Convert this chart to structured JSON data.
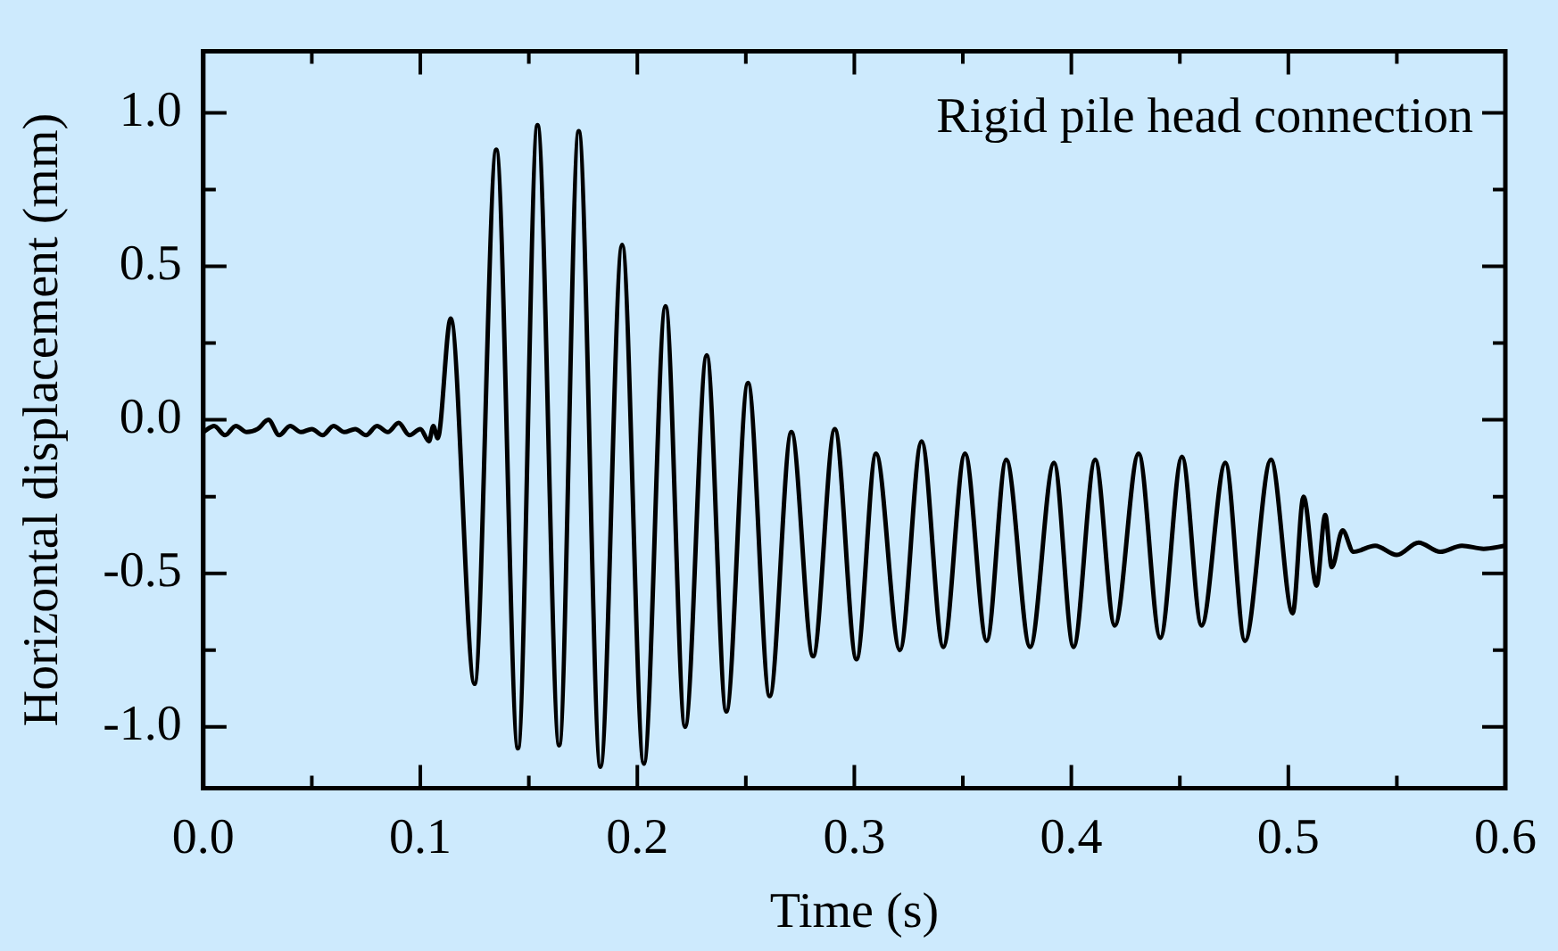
{
  "chart_data": {
    "type": "line",
    "xlabel": "Time (s)",
    "ylabel": "Horizontal displacement (mm)",
    "annotations": [
      "Rigid pile head connection"
    ],
    "color": "#000000",
    "marker": "none",
    "line_style": "solid",
    "grid": false,
    "legend": false,
    "xlim": [
      0,
      0.6
    ],
    "ylim": [
      -1.2,
      1.2
    ],
    "xticks": [
      {
        "value": 0,
        "label": "0.0"
      },
      {
        "value": 0.05,
        "label": null
      },
      {
        "value": 0.1,
        "label": "0.1"
      },
      {
        "value": 0.15,
        "label": null
      },
      {
        "value": 0.2,
        "label": "0.2"
      },
      {
        "value": 0.25,
        "label": null
      },
      {
        "value": 0.3,
        "label": "0.3"
      },
      {
        "value": 0.35,
        "label": null
      },
      {
        "value": 0.4,
        "label": "0.4"
      },
      {
        "value": 0.45,
        "label": null
      },
      {
        "value": 0.5,
        "label": "0.5"
      },
      {
        "value": 0.55,
        "label": null
      },
      {
        "value": 0.6,
        "label": "0.6"
      }
    ],
    "yticks": [
      {
        "value": -1,
        "label": "-1.0"
      },
      {
        "value": -0.75,
        "label": null
      },
      {
        "value": -0.5,
        "label": "-0.5"
      },
      {
        "value": -0.25,
        "label": null
      },
      {
        "value": 0,
        "label": "0.0"
      },
      {
        "value": 0.25,
        "label": null
      },
      {
        "value": 0.5,
        "label": "0.5"
      },
      {
        "value": 0.75,
        "label": null
      },
      {
        "value": 1,
        "label": "1.0"
      }
    ],
    "x": [
      0,
      0.005,
      0.01,
      0.015,
      0.02,
      0.025,
      0.03,
      0.035,
      0.04,
      0.045,
      0.05,
      0.055,
      0.06,
      0.065,
      0.07,
      0.075,
      0.08,
      0.085,
      0.09,
      0.095,
      0.1,
      0.104,
      0.106,
      0.108,
      0.114,
      0.125,
      0.135,
      0.145,
      0.154,
      0.164,
      0.173,
      0.183,
      0.193,
      0.203,
      0.213,
      0.222,
      0.232,
      0.241,
      0.251,
      0.261,
      0.271,
      0.281,
      0.291,
      0.301,
      0.31,
      0.321,
      0.331,
      0.341,
      0.351,
      0.361,
      0.37,
      0.381,
      0.392,
      0.401,
      0.411,
      0.42,
      0.431,
      0.441,
      0.451,
      0.46,
      0.471,
      0.48,
      0.492,
      0.502,
      0.507,
      0.513,
      0.517,
      0.52,
      0.525,
      0.53,
      0.54,
      0.55,
      0.56,
      0.57,
      0.58,
      0.59,
      0.6
    ],
    "values": [
      -0.04,
      -0.02,
      -0.05,
      -0.02,
      -0.04,
      -0.03,
      0.0,
      -0.05,
      -0.02,
      -0.04,
      -0.03,
      -0.05,
      -0.02,
      -0.04,
      -0.03,
      -0.05,
      -0.02,
      -0.04,
      -0.01,
      -0.05,
      -0.03,
      -0.07,
      -0.02,
      -0.06,
      0.33,
      -0.86,
      0.88,
      -1.07,
      0.96,
      -1.06,
      0.94,
      -1.13,
      0.57,
      -1.12,
      0.37,
      -1.0,
      0.21,
      -0.95,
      0.12,
      -0.9,
      -0.04,
      -0.77,
      -0.03,
      -0.78,
      -0.11,
      -0.75,
      -0.07,
      -0.74,
      -0.11,
      -0.72,
      -0.13,
      -0.74,
      -0.14,
      -0.74,
      -0.13,
      -0.67,
      -0.11,
      -0.71,
      -0.12,
      -0.67,
      -0.14,
      -0.72,
      -0.13,
      -0.63,
      -0.25,
      -0.54,
      -0.31,
      -0.48,
      -0.36,
      -0.43,
      -0.41,
      -0.44,
      -0.4,
      -0.43,
      -0.41,
      -0.42,
      -0.41
    ]
  }
}
